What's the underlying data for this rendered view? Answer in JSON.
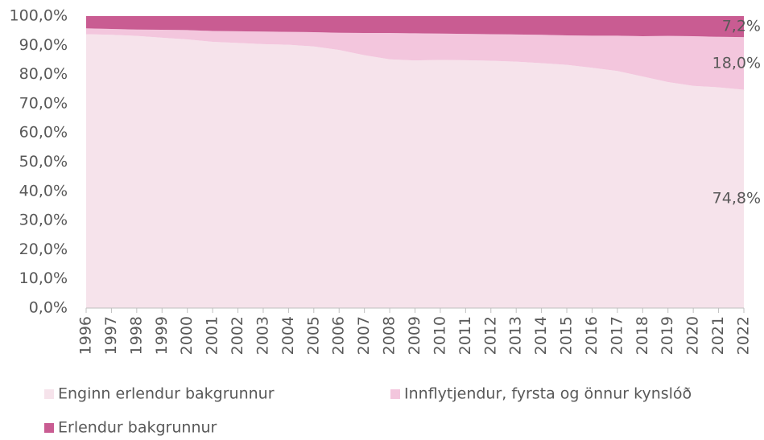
{
  "chart_data": {
    "type": "stacked_area",
    "x": [
      "1996",
      "1997",
      "1998",
      "1999",
      "2000",
      "2001",
      "2002",
      "2003",
      "2004",
      "2005",
      "2006",
      "2007",
      "2008",
      "2009",
      "2010",
      "2011",
      "2012",
      "2013",
      "2014",
      "2015",
      "2016",
      "2017",
      "2018",
      "2019",
      "2020",
      "2021",
      "2022"
    ],
    "series": [
      {
        "name": "Enginn erlendur bakgrunnur",
        "color": "#f6e3eb",
        "values": [
          93.8,
          93.6,
          93.2,
          92.6,
          92.0,
          91.2,
          90.8,
          90.4,
          90.2,
          89.6,
          88.4,
          86.6,
          85.2,
          84.8,
          85.0,
          84.9,
          84.7,
          84.4,
          83.9,
          83.3,
          82.3,
          81.2,
          79.3,
          77.4,
          76.1,
          75.6,
          74.8
        ],
        "value_labels": [
          null,
          null,
          null,
          null,
          null,
          null,
          null,
          null,
          null,
          null,
          null,
          null,
          null,
          null,
          null,
          null,
          null,
          null,
          null,
          null,
          null,
          null,
          null,
          null,
          null,
          null,
          "74,8%"
        ]
      },
      {
        "name": "Innflytjendur, fyrsta og önnur kynslóð",
        "color": "#f3c6dd",
        "values": [
          2.0,
          2.0,
          2.2,
          2.7,
          3.2,
          3.7,
          4.0,
          4.3,
          4.4,
          4.9,
          5.9,
          7.6,
          9.0,
          9.3,
          9.0,
          9.0,
          9.1,
          9.3,
          9.7,
          10.1,
          11.0,
          12.1,
          13.8,
          15.8,
          17.0,
          17.3,
          18.0
        ],
        "value_labels": [
          null,
          null,
          null,
          null,
          null,
          null,
          null,
          null,
          null,
          null,
          null,
          null,
          null,
          null,
          null,
          null,
          null,
          null,
          null,
          null,
          null,
          null,
          null,
          null,
          null,
          null,
          "18,0%"
        ]
      },
      {
        "name": "Erlendur bakgrunnur",
        "color": "#c95c92",
        "values": [
          4.2,
          4.4,
          4.6,
          4.7,
          4.8,
          5.1,
          5.2,
          5.3,
          5.4,
          5.5,
          5.7,
          5.8,
          5.8,
          5.9,
          6.0,
          6.1,
          6.2,
          6.3,
          6.4,
          6.6,
          6.7,
          6.7,
          6.9,
          6.8,
          6.9,
          7.1,
          7.2
        ],
        "value_labels": [
          null,
          null,
          null,
          null,
          null,
          null,
          null,
          null,
          null,
          null,
          null,
          null,
          null,
          null,
          null,
          null,
          null,
          null,
          null,
          null,
          null,
          null,
          null,
          null,
          null,
          null,
          "7,2%"
        ]
      }
    ],
    "ylim": [
      0,
      100
    ],
    "yticks": [
      {
        "value": 0,
        "label": "0,0%"
      },
      {
        "value": 10,
        "label": "10,0%"
      },
      {
        "value": 20,
        "label": "20,0%"
      },
      {
        "value": 30,
        "label": "30,0%"
      },
      {
        "value": 40,
        "label": "40,0%"
      },
      {
        "value": 50,
        "label": "50,0%"
      },
      {
        "value": 60,
        "label": "60,0%"
      },
      {
        "value": 70,
        "label": "70,0%"
      },
      {
        "value": 80,
        "label": "80,0%"
      },
      {
        "value": 90,
        "label": "90,0%"
      },
      {
        "value": 100,
        "label": "100,0%"
      }
    ],
    "legend": "bottom"
  }
}
